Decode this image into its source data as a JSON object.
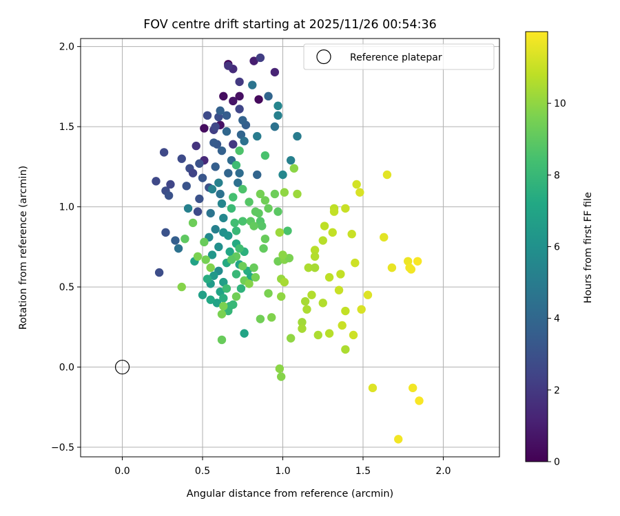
{
  "chart_data": {
    "type": "scatter",
    "title": "FOV centre drift starting at 2025/11/26 00:54:36",
    "xlabel": "Angular distance from reference (arcmin)",
    "ylabel": "Rotation from reference (arcmin)",
    "xlim": [
      -0.26,
      2.35
    ],
    "ylim": [
      -0.56,
      2.05
    ],
    "xticks": [
      0.0,
      0.5,
      1.0,
      1.5,
      2.0
    ],
    "xtick_labels": [
      "0.0",
      "0.5",
      "1.0",
      "1.5",
      "2.0"
    ],
    "yticks": [
      -0.5,
      0.0,
      0.5,
      1.0,
      1.5,
      2.0
    ],
    "ytick_labels": [
      "−0.5",
      "0.0",
      "0.5",
      "1.0",
      "1.5",
      "2.0"
    ],
    "grid": true,
    "legend": {
      "location": "top-right",
      "entries": [
        "Reference platepar"
      ]
    },
    "reference_point": {
      "x": 0.0,
      "y": 0.0,
      "label": "Reference platepar"
    },
    "colorbar": {
      "label": "Hours from first FF file",
      "colormap": "viridis",
      "range": [
        0,
        12
      ],
      "ticks": [
        0,
        2,
        4,
        6,
        8,
        10
      ],
      "tick_labels": [
        "0",
        "2",
        "4",
        "6",
        "8",
        "10"
      ]
    },
    "points": [
      [
        0.66,
        1.89,
        0.1
      ],
      [
        0.85,
        1.67,
        0.3
      ],
      [
        0.63,
        1.69,
        0.4
      ],
      [
        0.73,
        1.69,
        0.5
      ],
      [
        0.51,
        1.49,
        0.4
      ],
      [
        0.61,
        1.51,
        0.6
      ],
      [
        0.69,
        1.66,
        0.7
      ],
      [
        0.82,
        1.91,
        1.0
      ],
      [
        0.95,
        1.84,
        1.2
      ],
      [
        0.69,
        1.86,
        1.5
      ],
      [
        0.66,
        1.88,
        1.8
      ],
      [
        0.73,
        1.78,
        2.0
      ],
      [
        0.86,
        1.93,
        2.2
      ],
      [
        0.57,
        1.48,
        2.2
      ],
      [
        0.69,
        1.39,
        2.0
      ],
      [
        0.46,
        1.38,
        1.8
      ],
      [
        0.51,
        1.29,
        1.4
      ],
      [
        0.73,
        1.61,
        2.5
      ],
      [
        0.53,
        1.57,
        2.7
      ],
      [
        0.58,
        1.5,
        2.6
      ],
      [
        0.6,
        1.56,
        2.9
      ],
      [
        0.26,
        1.34,
        2.6
      ],
      [
        0.21,
        1.16,
        2.6
      ],
      [
        0.27,
        1.1,
        2.8
      ],
      [
        0.3,
        1.14,
        2.5
      ],
      [
        0.29,
        1.07,
        3.0
      ],
      [
        0.4,
        1.13,
        3.1
      ],
      [
        0.42,
        1.24,
        2.8
      ],
      [
        0.37,
        1.3,
        2.7
      ],
      [
        0.44,
        1.21,
        2.4
      ],
      [
        0.48,
        1.27,
        3.0
      ],
      [
        0.5,
        1.18,
        3.2
      ],
      [
        0.54,
        1.12,
        3.0
      ],
      [
        0.59,
        1.39,
        3.3
      ],
      [
        0.57,
        1.4,
        3.4
      ],
      [
        0.65,
        1.57,
        3.5
      ],
      [
        0.77,
        1.51,
        3.6
      ],
      [
        0.75,
        1.54,
        3.8
      ],
      [
        0.74,
        1.45,
        3.9
      ],
      [
        0.91,
        1.69,
        3.9
      ],
      [
        0.61,
        1.6,
        3.7
      ],
      [
        0.65,
        1.47,
        4.0
      ],
      [
        0.62,
        1.35,
        3.7
      ],
      [
        0.58,
        1.25,
        3.6
      ],
      [
        0.66,
        1.21,
        3.9
      ],
      [
        0.73,
        1.21,
        4.2
      ],
      [
        0.68,
        1.29,
        4.2
      ],
      [
        0.72,
        1.15,
        4.4
      ],
      [
        0.84,
        1.2,
        3.9
      ],
      [
        0.81,
        1.76,
        4.6
      ],
      [
        0.95,
        1.5,
        4.5
      ],
      [
        0.76,
        1.41,
        4.5
      ],
      [
        0.84,
        1.44,
        5.0
      ],
      [
        0.97,
        1.57,
        5.2
      ],
      [
        0.97,
        1.63,
        5.4
      ],
      [
        1.05,
        1.29,
        5.2
      ],
      [
        1.0,
        1.2,
        5.5
      ],
      [
        1.09,
        1.44,
        5.0
      ],
      [
        0.47,
        0.97,
        2.7
      ],
      [
        0.48,
        1.05,
        3.0
      ],
      [
        0.33,
        0.79,
        3.6
      ],
      [
        0.27,
        0.84,
        3.0
      ],
      [
        0.23,
        0.59,
        2.8
      ],
      [
        0.35,
        0.74,
        4.5
      ],
      [
        0.41,
        0.99,
        5.2
      ],
      [
        0.56,
        1.11,
        5.3
      ],
      [
        0.6,
        1.15,
        5.2
      ],
      [
        0.61,
        1.08,
        4.5
      ],
      [
        0.55,
        0.96,
        4.6
      ],
      [
        0.63,
        0.93,
        5.5
      ],
      [
        0.62,
        1.02,
        5.4
      ],
      [
        0.58,
        0.86,
        5.2
      ],
      [
        0.54,
        0.81,
        5.6
      ],
      [
        0.63,
        0.84,
        6.0
      ],
      [
        0.66,
        0.82,
        6.2
      ],
      [
        0.6,
        0.75,
        5.9
      ],
      [
        0.56,
        0.7,
        6.3
      ],
      [
        0.6,
        0.6,
        5.8
      ],
      [
        0.55,
        0.52,
        6.5
      ],
      [
        0.63,
        0.53,
        6.7
      ],
      [
        0.57,
        0.57,
        6.4
      ],
      [
        0.5,
        0.45,
        6.8
      ],
      [
        0.59,
        0.4,
        6.9
      ],
      [
        0.55,
        0.42,
        7.2
      ],
      [
        0.61,
        0.47,
        7.0
      ],
      [
        0.53,
        0.55,
        7.4
      ],
      [
        0.45,
        0.66,
        6.9
      ],
      [
        0.65,
        0.65,
        7.3
      ],
      [
        0.67,
        0.72,
        7.1
      ],
      [
        0.71,
        0.77,
        7.3
      ],
      [
        0.76,
        0.72,
        7.6
      ],
      [
        0.73,
        0.64,
        7.0
      ],
      [
        0.78,
        0.6,
        7.4
      ],
      [
        0.8,
        0.56,
        7.2
      ],
      [
        0.76,
        0.21,
        7.0
      ],
      [
        0.63,
        0.43,
        7.5
      ],
      [
        0.67,
        0.38,
        7.8
      ],
      [
        0.66,
        0.35,
        7.9
      ],
      [
        0.69,
        0.39,
        8.0
      ],
      [
        0.65,
        0.49,
        8.2
      ],
      [
        0.74,
        0.49,
        7.7
      ],
      [
        0.71,
        0.58,
        8.0
      ],
      [
        0.73,
        0.74,
        8.3
      ],
      [
        0.71,
        0.85,
        8.0
      ],
      [
        0.7,
        0.9,
        8.3
      ],
      [
        0.75,
        0.91,
        8.5
      ],
      [
        0.68,
        0.99,
        8.1
      ],
      [
        0.69,
        1.06,
        8.4
      ],
      [
        0.75,
        1.11,
        8.6
      ],
      [
        0.71,
        1.26,
        8.2
      ],
      [
        0.73,
        1.35,
        8.6
      ],
      [
        0.89,
        1.32,
        8.5
      ],
      [
        0.79,
        1.03,
        8.8
      ],
      [
        0.8,
        0.91,
        8.9
      ],
      [
        0.85,
        0.96,
        9.0
      ],
      [
        0.86,
        0.91,
        8.7
      ],
      [
        0.87,
        0.88,
        8.8
      ],
      [
        0.89,
        0.8,
        9.2
      ],
      [
        0.88,
        0.74,
        9.1
      ],
      [
        0.97,
        0.97,
        8.9
      ],
      [
        1.03,
        0.85,
        8.5
      ],
      [
        0.91,
        0.99,
        9.2
      ],
      [
        0.95,
        1.08,
        9.3
      ],
      [
        0.89,
        1.04,
        9.4
      ],
      [
        0.86,
        1.08,
        9.5
      ],
      [
        0.83,
        0.97,
        9.0
      ],
      [
        0.82,
        0.88,
        9.1
      ],
      [
        0.71,
        0.69,
        9.1
      ],
      [
        0.68,
        0.67,
        8.9
      ],
      [
        0.75,
        0.63,
        9.3
      ],
      [
        0.82,
        0.62,
        9.2
      ],
      [
        0.83,
        0.56,
        9.5
      ],
      [
        0.76,
        0.54,
        9.4
      ],
      [
        0.79,
        0.52,
        9.8
      ],
      [
        0.71,
        0.44,
        9.4
      ],
      [
        0.63,
        0.38,
        9.6
      ],
      [
        0.62,
        0.33,
        9.6
      ],
      [
        0.62,
        0.17,
        9.2
      ],
      [
        0.44,
        0.9,
        9.3
      ],
      [
        0.39,
        0.8,
        9.0
      ],
      [
        0.51,
        0.78,
        9.2
      ],
      [
        0.52,
        0.67,
        9.5
      ],
      [
        0.55,
        0.62,
        9.7
      ],
      [
        0.37,
        0.5,
        9.8
      ],
      [
        0.47,
        0.69,
        9.6
      ],
      [
        0.86,
        0.3,
        9.4
      ],
      [
        0.93,
        0.31,
        9.7
      ],
      [
        0.91,
        0.46,
        9.6
      ],
      [
        0.97,
        0.66,
        9.4
      ],
      [
        1.01,
        0.67,
        9.8
      ],
      [
        1.04,
        0.68,
        9.6
      ],
      [
        1.0,
        0.7,
        9.9
      ],
      [
        0.99,
        0.44,
        10.0
      ],
      [
        0.99,
        0.55,
        10.1
      ],
      [
        1.01,
        0.53,
        10.4
      ],
      [
        0.98,
        -0.01,
        9.9
      ],
      [
        0.99,
        -0.06,
        9.8
      ],
      [
        1.05,
        0.18,
        10.0
      ],
      [
        0.98,
        0.84,
        10.2
      ],
      [
        1.09,
        1.08,
        10.2
      ],
      [
        1.01,
        1.09,
        10.0
      ],
      [
        1.07,
        1.24,
        9.9
      ],
      [
        1.12,
        0.28,
        10.3
      ],
      [
        1.14,
        0.41,
        10.4
      ],
      [
        1.12,
        0.24,
        10.4
      ],
      [
        1.15,
        0.36,
        10.5
      ],
      [
        1.16,
        0.62,
        10.5
      ],
      [
        1.18,
        0.45,
        10.6
      ],
      [
        1.2,
        0.62,
        10.4
      ],
      [
        1.2,
        0.73,
        10.7
      ],
      [
        1.2,
        0.69,
        10.6
      ],
      [
        1.22,
        0.2,
        10.5
      ],
      [
        1.25,
        0.4,
        10.6
      ],
      [
        1.25,
        0.79,
        10.7
      ],
      [
        1.26,
        0.88,
        10.8
      ],
      [
        1.29,
        0.56,
        10.8
      ],
      [
        1.29,
        0.21,
        10.7
      ],
      [
        1.31,
        0.84,
        10.9
      ],
      [
        1.32,
        0.99,
        10.8
      ],
      [
        1.32,
        0.97,
        10.9
      ],
      [
        1.35,
        0.48,
        11.0
      ],
      [
        1.36,
        0.58,
        10.9
      ],
      [
        1.37,
        0.26,
        11.0
      ],
      [
        1.39,
        0.35,
        10.9
      ],
      [
        1.39,
        0.11,
        10.5
      ],
      [
        1.39,
        0.99,
        11.0
      ],
      [
        1.43,
        0.83,
        11.0
      ],
      [
        1.44,
        0.2,
        11.1
      ],
      [
        1.45,
        0.65,
        11.1
      ],
      [
        1.46,
        1.14,
        11.2
      ],
      [
        1.48,
        1.09,
        11.3
      ],
      [
        1.49,
        0.36,
        11.3
      ],
      [
        1.53,
        0.45,
        11.4
      ],
      [
        1.56,
        -0.13,
        11.4
      ],
      [
        1.63,
        0.81,
        11.5
      ],
      [
        1.65,
        1.2,
        11.5
      ],
      [
        1.68,
        0.62,
        11.6
      ],
      [
        1.72,
        -0.45,
        11.8
      ],
      [
        1.78,
        0.66,
        11.7
      ],
      [
        1.79,
        0.62,
        11.8
      ],
      [
        1.8,
        0.61,
        11.8
      ],
      [
        1.81,
        -0.13,
        11.8
      ],
      [
        1.84,
        0.66,
        11.9
      ],
      [
        1.85,
        -0.21,
        11.9
      ]
    ]
  }
}
